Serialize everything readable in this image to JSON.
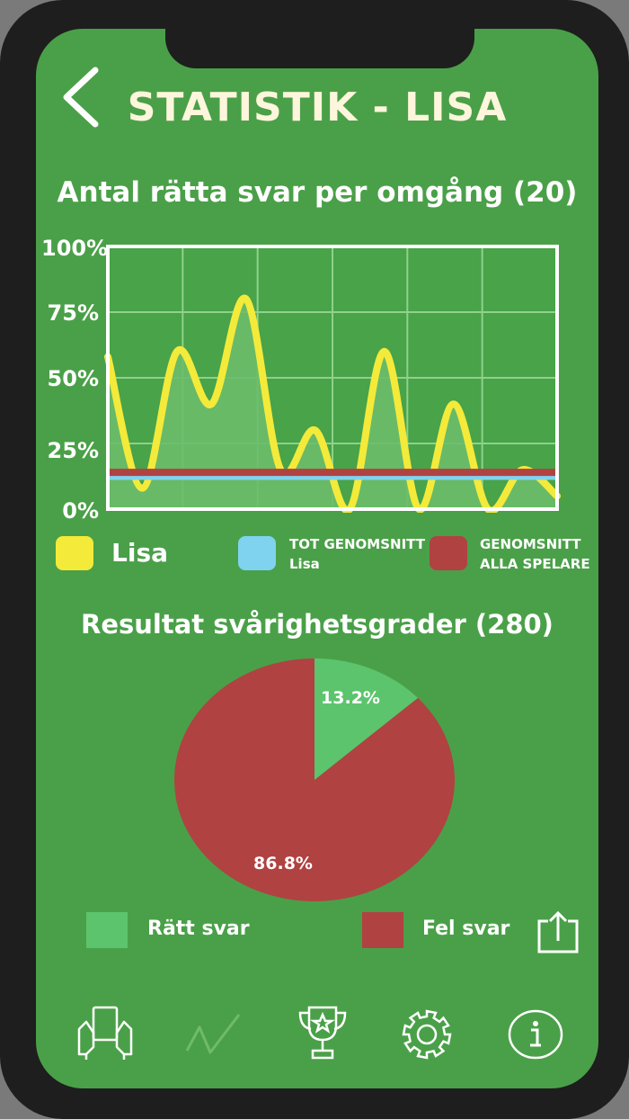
{
  "header": {
    "title": "STATISTIK - LISA"
  },
  "line_chart": {
    "title": "Antal rätta svar per omgång (20)",
    "y_ticks": [
      "100%",
      "75%",
      "50%",
      "25%",
      "0%"
    ],
    "legend": {
      "lisa": "Lisa",
      "tot_line1": "TOT GENOMSNITT",
      "tot_line2": "Lisa",
      "all_line1": "GENOMSNITT",
      "all_line2": "ALLA SPELARE"
    }
  },
  "pie_chart": {
    "title": "Resultat svårighetsgrader (280)",
    "correct_label": "13.2%",
    "wrong_label": "86.8%",
    "legend": {
      "correct": "Rätt svar",
      "wrong": "Fel svar"
    }
  },
  "chart_data": [
    {
      "type": "line",
      "title": "Antal rätta svar per omgång (20)",
      "ylim": [
        0,
        100
      ],
      "y_ticks": [
        "0%",
        "25%",
        "50%",
        "75%",
        "100%"
      ],
      "grid": true,
      "series": [
        {
          "name": "Lisa",
          "color": "#f4ea3a",
          "values": [
            58,
            8,
            60,
            40,
            80,
            15,
            30,
            0,
            60,
            0,
            40,
            0,
            15,
            5
          ]
        },
        {
          "name": "TOT GENOMSNITT Lisa",
          "color": "#7fd3ef",
          "values": [
            12
          ]
        },
        {
          "name": "GENOMSNITT ALLA SPELARE",
          "color": "#b04242",
          "values": [
            14
          ]
        }
      ]
    },
    {
      "type": "pie",
      "title": "Resultat svårighetsgrader (280)",
      "slices": [
        {
          "name": "Rätt svar",
          "value": 13.2,
          "color": "#5cc46c"
        },
        {
          "name": "Fel svar",
          "value": 86.8,
          "color": "#b04242"
        }
      ]
    }
  ],
  "nav": {
    "items": [
      "quiz-icon",
      "statistics-icon",
      "trophy-icon",
      "settings-icon",
      "info-icon"
    ]
  }
}
